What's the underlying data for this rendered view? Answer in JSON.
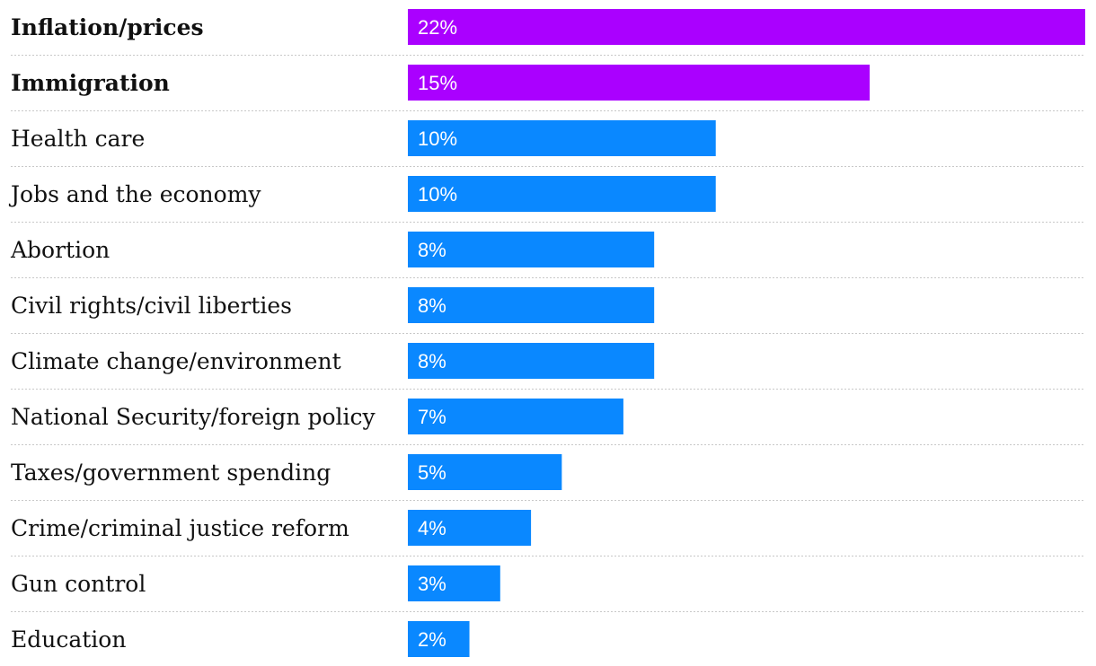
{
  "chart_data": {
    "type": "bar",
    "orientation": "horizontal",
    "title": "",
    "xlabel": "",
    "ylabel": "",
    "xlim": [
      0,
      22
    ],
    "value_suffix": "%",
    "categories": [
      "Inflation/prices",
      "Immigration",
      "Health care",
      "Jobs and the economy",
      "Abortion",
      "Civil rights/civil liberties",
      "Climate change/environment",
      "National Security/foreign policy",
      "Taxes/government spending",
      "Crime/criminal justice reform",
      "Gun control",
      "Education"
    ],
    "values": [
      22,
      15,
      10,
      10,
      8,
      8,
      8,
      7,
      5,
      4,
      3,
      2
    ],
    "highlighted": [
      true,
      true,
      false,
      false,
      false,
      false,
      false,
      false,
      false,
      false,
      false,
      false
    ],
    "colors": {
      "highlight": "#aa00ff",
      "default": "#0a88ff"
    }
  }
}
